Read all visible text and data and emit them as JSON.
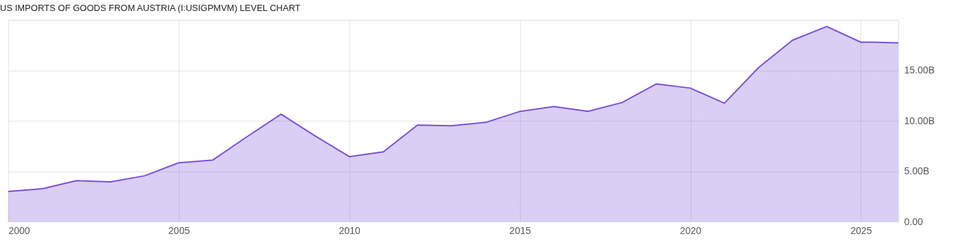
{
  "chart_data": {
    "type": "area",
    "title": "US IMPORTS OF GOODS FROM AUSTRIA (I:USIGPMVM) LEVEL CHART",
    "x": [
      2000,
      2001,
      2002,
      2003,
      2004,
      2005,
      2006,
      2007,
      2008,
      2009,
      2010,
      2011,
      2012,
      2013,
      2014,
      2015,
      2016,
      2017,
      2018,
      2019,
      2020,
      2021,
      2022,
      2023,
      2024,
      2025,
      2025.33,
      2026.1
    ],
    "series": [
      {
        "color": "#7b4fd8",
        "values": [
          2.99,
          3.26,
          4.07,
          3.94,
          4.55,
          5.84,
          6.11,
          8.42,
          10.66,
          8.49,
          6.45,
          6.92,
          9.57,
          9.5,
          9.84,
          10.93,
          11.41,
          10.93,
          11.81,
          13.65,
          13.24,
          11.74,
          15.27,
          17.99,
          19.35,
          17.79,
          17.79,
          17.72
        ]
      }
    ],
    "xlim": [
      2000,
      2026.1
    ],
    "xticks": [
      2000,
      2005,
      2010,
      2015,
      2020,
      2025
    ],
    "ylim": [
      0,
      20
    ],
    "yticks": [
      {
        "value": 0,
        "label": "0.00"
      },
      {
        "value": 5,
        "label": "5.00B"
      },
      {
        "value": 10,
        "label": "10.00B"
      },
      {
        "value": 15,
        "label": "15.00B"
      }
    ],
    "grid": true
  }
}
